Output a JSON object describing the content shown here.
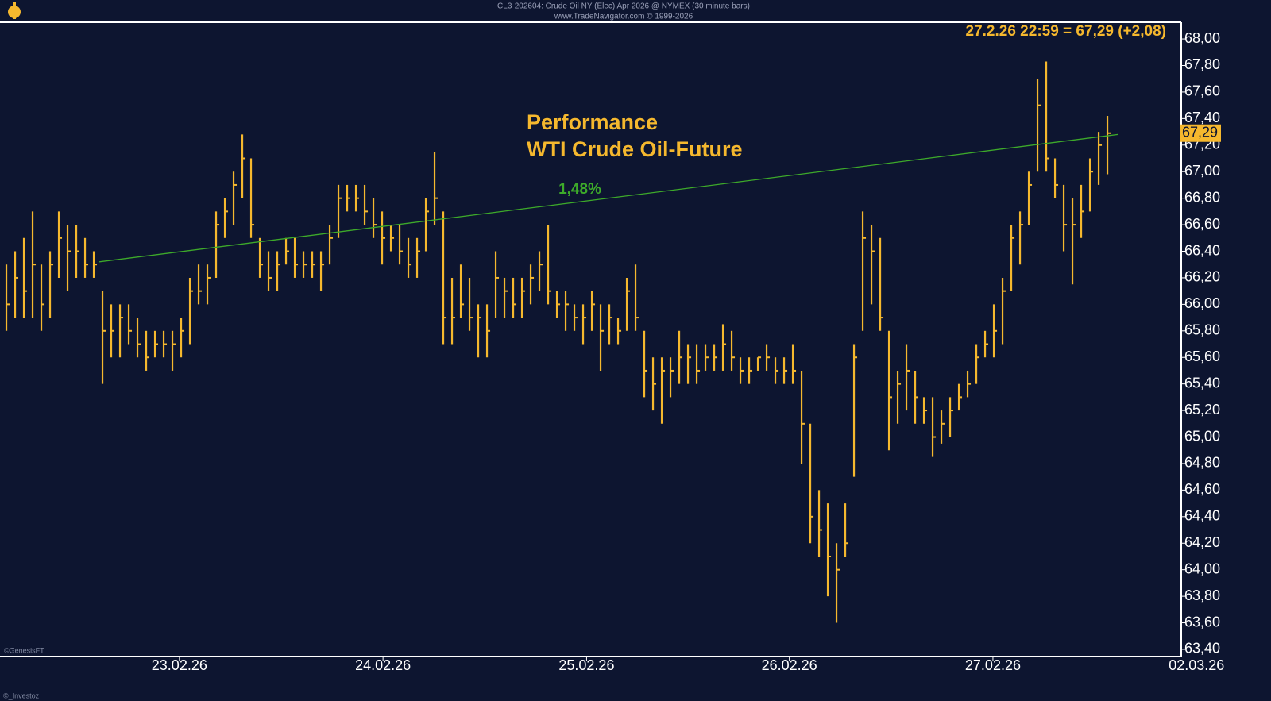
{
  "chart_data": {
    "type": "ohlc",
    "title": "CL3-202604: Crude Oil NY (Elec) Apr 2026 @ NYMEX (30 minute bars)",
    "subtitle": "www.TradeNavigator.com © 1999-2026",
    "last_quote": "27.2.26 22:59 = 67,29 (+2,08)",
    "annotation_title": [
      "Performance",
      "WTI Crude Oil-Future"
    ],
    "credit": "©GenesisFT",
    "watermark": "©_Investoz",
    "color": "#f5b82e",
    "high": [
      66.3,
      66.4,
      66.5,
      66.7,
      66.3,
      66.4,
      66.7,
      66.6,
      66.6,
      66.5,
      66.4,
      66.1,
      66.0,
      66.0,
      66.0,
      65.9,
      65.8,
      65.8,
      65.8,
      65.8,
      65.9,
      66.2,
      66.3,
      66.3,
      66.7,
      66.8,
      67.0,
      67.28,
      67.1,
      66.5,
      66.4,
      66.4,
      66.5,
      66.5,
      66.4,
      66.4,
      66.4,
      66.6,
      66.9,
      66.9,
      66.9,
      66.9,
      66.8,
      66.7,
      66.6,
      66.6,
      66.5,
      66.5,
      66.8,
      67.15,
      66.7,
      66.2,
      66.3,
      66.2,
      66.0,
      66.0,
      66.4,
      66.2,
      66.2,
      66.2,
      66.3,
      66.4,
      66.6,
      66.1,
      66.1,
      66.0,
      66.0,
      66.1,
      66.0,
      66.0,
      65.9,
      66.2,
      66.3,
      65.8,
      65.6,
      65.6,
      65.6,
      65.8,
      65.7,
      65.7,
      65.7,
      65.7,
      65.85,
      65.8,
      65.6,
      65.6,
      65.6,
      65.7,
      65.6,
      65.6,
      65.7,
      65.5,
      65.1,
      64.6,
      64.5,
      64.2,
      64.5,
      65.7,
      66.7,
      66.6,
      66.5,
      65.8,
      65.5,
      65.7,
      65.5,
      65.3,
      65.3,
      65.2,
      65.3,
      65.4,
      65.5,
      65.7,
      65.8,
      66.0,
      66.2,
      66.6,
      66.7,
      67.0,
      67.7,
      67.83,
      67.1,
      66.9,
      66.8,
      66.9,
      67.1,
      67.3,
      67.42
    ],
    "low": [
      65.8,
      65.9,
      65.9,
      65.9,
      65.8,
      65.9,
      66.2,
      66.1,
      66.2,
      66.2,
      66.2,
      65.4,
      65.6,
      65.6,
      65.7,
      65.6,
      65.5,
      65.6,
      65.6,
      65.5,
      65.6,
      65.7,
      66.0,
      66.0,
      66.2,
      66.5,
      66.6,
      66.8,
      66.5,
      66.2,
      66.1,
      66.1,
      66.3,
      66.2,
      66.2,
      66.2,
      66.1,
      66.3,
      66.5,
      66.7,
      66.7,
      66.6,
      66.5,
      66.3,
      66.4,
      66.3,
      66.2,
      66.2,
      66.4,
      66.6,
      65.7,
      65.7,
      65.9,
      65.8,
      65.6,
      65.6,
      65.9,
      65.9,
      65.9,
      65.9,
      66.0,
      66.1,
      66.0,
      65.9,
      65.8,
      65.8,
      65.7,
      65.8,
      65.5,
      65.7,
      65.7,
      65.8,
      65.8,
      65.3,
      65.2,
      65.1,
      65.3,
      65.4,
      65.4,
      65.4,
      65.5,
      65.5,
      65.5,
      65.5,
      65.4,
      65.4,
      65.5,
      65.5,
      65.4,
      65.4,
      65.4,
      64.8,
      64.2,
      64.1,
      63.8,
      63.6,
      64.1,
      64.7,
      65.8,
      66.0,
      65.8,
      64.9,
      65.1,
      65.2,
      65.1,
      65.1,
      64.85,
      64.95,
      65.0,
      65.2,
      65.3,
      65.4,
      65.6,
      65.6,
      65.7,
      66.1,
      66.3,
      66.6,
      67.0,
      67.0,
      66.8,
      66.4,
      66.15,
      66.5,
      66.7,
      66.9,
      66.98
    ],
    "close": [
      66.0,
      66.2,
      66.1,
      66.3,
      66.0,
      66.3,
      66.5,
      66.4,
      66.4,
      66.3,
      66.3,
      65.8,
      65.8,
      65.9,
      65.8,
      65.7,
      65.6,
      65.7,
      65.7,
      65.7,
      65.8,
      66.1,
      66.1,
      66.2,
      66.6,
      66.7,
      66.9,
      67.1,
      66.6,
      66.3,
      66.2,
      66.3,
      66.4,
      66.3,
      66.3,
      66.3,
      66.3,
      66.5,
      66.8,
      66.8,
      66.8,
      66.7,
      66.6,
      66.5,
      66.5,
      66.4,
      66.3,
      66.4,
      66.7,
      66.8,
      65.9,
      65.9,
      66.0,
      65.9,
      65.9,
      65.8,
      66.2,
      66.1,
      66.0,
      66.1,
      66.2,
      66.3,
      66.1,
      66.0,
      66.0,
      65.9,
      65.9,
      66.0,
      65.8,
      65.9,
      65.8,
      66.1,
      65.9,
      65.5,
      65.4,
      65.5,
      65.5,
      65.6,
      65.6,
      65.5,
      65.6,
      65.6,
      65.7,
      65.6,
      65.5,
      65.5,
      65.6,
      65.6,
      65.5,
      65.5,
      65.5,
      65.1,
      64.4,
      64.3,
      64.1,
      64.0,
      64.2,
      65.6,
      66.5,
      66.4,
      65.9,
      65.3,
      65.4,
      65.5,
      65.3,
      65.2,
      65.0,
      65.1,
      65.2,
      65.3,
      65.4,
      65.6,
      65.7,
      65.8,
      66.1,
      66.5,
      66.6,
      66.9,
      67.5,
      67.1,
      66.9,
      66.6,
      66.6,
      66.7,
      67.0,
      67.2,
      67.29
    ],
    "xlim": [
      -0.73,
      134.45
    ],
    "xticks": [
      {
        "value": 19.8,
        "label": "23.02.26"
      },
      {
        "value": 43.1,
        "label": "24.02.26"
      },
      {
        "value": 66.4,
        "label": "25.02.26"
      },
      {
        "value": 89.6,
        "label": "26.02.26"
      },
      {
        "value": 112.9,
        "label": "27.02.26"
      },
      {
        "value": 136.2,
        "label": "02.03.26"
      }
    ],
    "ylim": [
      63.346,
      68.126
    ],
    "yticks": [
      {
        "value": 63.4,
        "label": "63,40"
      },
      {
        "value": 63.6,
        "label": "63,60"
      },
      {
        "value": 63.8,
        "label": "63,80"
      },
      {
        "value": 64.0,
        "label": "64,00"
      },
      {
        "value": 64.2,
        "label": "64,20"
      },
      {
        "value": 64.4,
        "label": "64,40"
      },
      {
        "value": 64.6,
        "label": "64,60"
      },
      {
        "value": 64.8,
        "label": "64,80"
      },
      {
        "value": 65.0,
        "label": "65,00"
      },
      {
        "value": 65.2,
        "label": "65,20"
      },
      {
        "value": 65.4,
        "label": "65,40"
      },
      {
        "value": 65.6,
        "label": "65,60"
      },
      {
        "value": 65.8,
        "label": "65,80"
      },
      {
        "value": 66.0,
        "label": "66,00"
      },
      {
        "value": 66.2,
        "label": "66,20"
      },
      {
        "value": 66.4,
        "label": "66,40"
      },
      {
        "value": 66.6,
        "label": "66,60"
      },
      {
        "value": 66.8,
        "label": "66,80"
      },
      {
        "value": 67.0,
        "label": "67,00"
      },
      {
        "value": 67.2,
        "label": "67,20"
      },
      {
        "value": 67.4,
        "label": "67,40"
      },
      {
        "value": 67.6,
        "label": "67,60"
      },
      {
        "value": 67.8,
        "label": "67,80"
      },
      {
        "value": 68.0,
        "label": "68,00"
      }
    ],
    "last_price": {
      "value": 67.29,
      "label": "67,29"
    },
    "trend_line": {
      "x": [
        10.6,
        127.2
      ],
      "y": [
        66.32,
        67.28
      ],
      "label": "1,48%",
      "color": "#3daa2a"
    }
  }
}
